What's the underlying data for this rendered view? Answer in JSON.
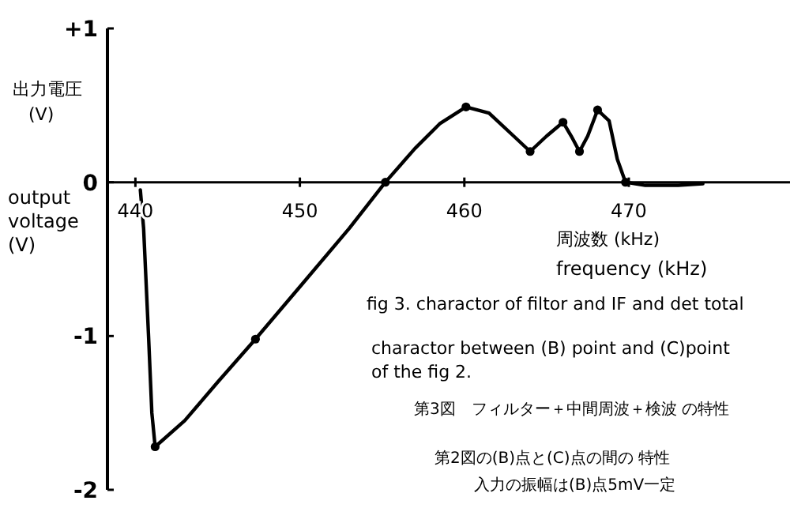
{
  "chart_data": {
    "type": "line",
    "xlabel": "周波数 (kHz)",
    "ylabel": "出力電圧 (V)",
    "xlim": [
      438.3,
      479.8
    ],
    "ylim": [
      -2,
      1
    ],
    "xticks": [
      440,
      450,
      460,
      470
    ],
    "yticks": [
      {
        "value": 1,
        "label": "+1"
      },
      0,
      -1,
      -2
    ],
    "grid": false,
    "series": [
      {
        "color": "#000000",
        "marker": "none",
        "x": [
          440.3,
          440.5,
          440.8,
          441.0,
          441.2,
          443,
          445,
          447.3,
          450,
          453,
          455.2,
          457,
          458.5,
          460.1,
          461.5,
          463,
          464,
          465,
          466,
          466.5,
          467,
          467.5,
          468.1,
          468.8,
          469.3,
          469.8,
          471,
          473,
          474.5
        ],
        "values": [
          -0.05,
          -0.3,
          -1.0,
          -1.5,
          -1.72,
          -1.55,
          -1.3,
          -1.02,
          -0.68,
          -0.3,
          0,
          0.22,
          0.38,
          0.49,
          0.45,
          0.3,
          0.2,
          0.3,
          0.39,
          0.3,
          0.2,
          0.3,
          0.47,
          0.4,
          0.15,
          0,
          -0.02,
          -0.02,
          -0.01
        ]
      },
      {
        "type": "scatter",
        "color": "#000000",
        "marker": "circle",
        "x": [
          441.2,
          447.3,
          455.2,
          460.1,
          464,
          466,
          467,
          468.1,
          469.8
        ],
        "values": [
          -1.72,
          -1.02,
          0,
          0.49,
          0.2,
          0.39,
          0.2,
          0.47,
          0
        ]
      }
    ],
    "annotations": [
      "output voltage (V)",
      "frequency (kHz)",
      "fig 3. charactor of filtor and IF and det total",
      "charactor between (B) point and (C)point of the fig 2.",
      "第3図　フィルター＋中間周波＋検波 の特性",
      "第2図の(B)点と(C)点の間の 特性",
      "入力の振幅は(B)点5mV一定"
    ]
  }
}
